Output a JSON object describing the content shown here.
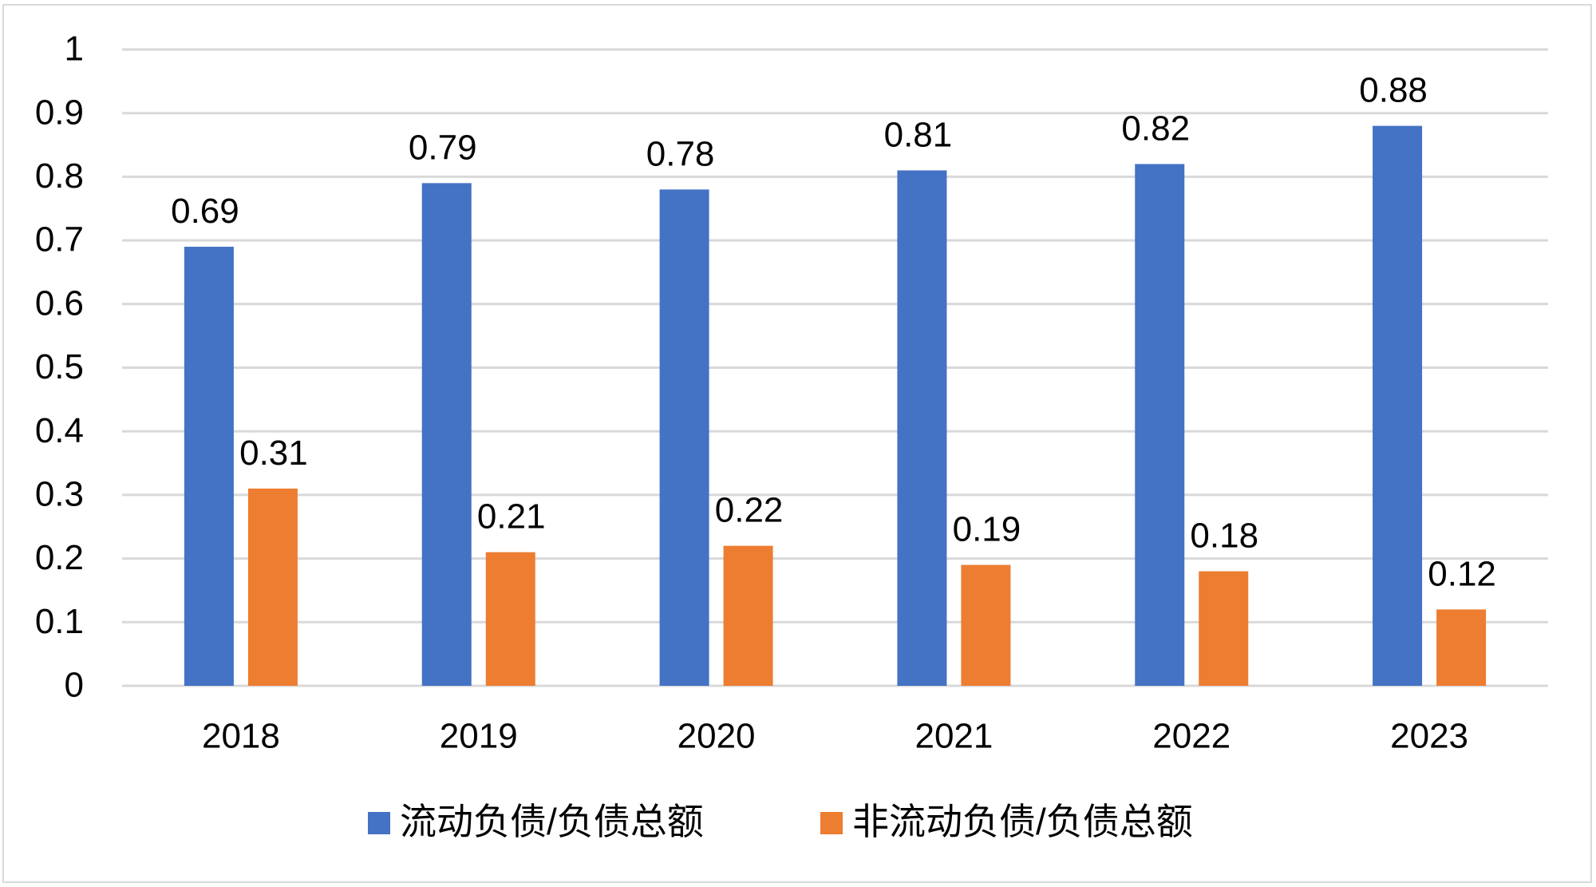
{
  "chart_data": {
    "type": "bar",
    "title": "",
    "xlabel": "",
    "ylabel": "",
    "categories": [
      "2018",
      "2019",
      "2020",
      "2021",
      "2022",
      "2023"
    ],
    "series": [
      {
        "name": "流动负债/负债总额",
        "color": "#4472C4",
        "values": [
          0.69,
          0.79,
          0.78,
          0.81,
          0.82,
          0.88
        ]
      },
      {
        "name": "非流动负债/负债总额",
        "color": "#ED7D31",
        "values": [
          0.31,
          0.21,
          0.22,
          0.19,
          0.18,
          0.12
        ]
      }
    ],
    "ylim": [
      0,
      1
    ],
    "yticks": [
      "0",
      "0.1",
      "0.2",
      "0.3",
      "0.4",
      "0.5",
      "0.6",
      "0.7",
      "0.8",
      "0.9",
      "1"
    ],
    "grid": true,
    "legend_position": "bottom",
    "gridline_color": "#d9d9d9"
  }
}
